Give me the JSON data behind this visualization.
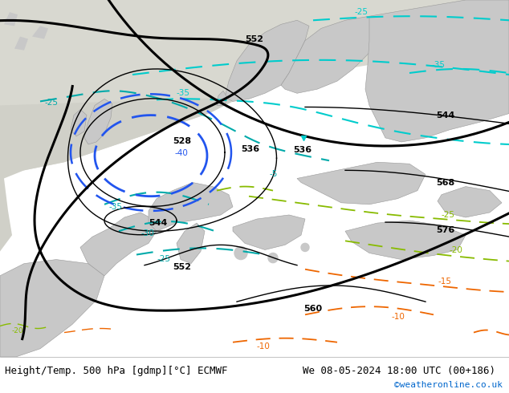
{
  "title_left": "Height/Temp. 500 hPa [gdmp][°C] ECMWF",
  "title_right": "We 08-05-2024 18:00 UTC (00+186)",
  "credit": "©weatheronline.co.uk",
  "credit_color": "#0066cc",
  "bg_green": "#c8f0a0",
  "land_gray": "#c8c8c8",
  "land_green": "#b0d880",
  "cyan_color": "#00cccc",
  "cyan_dark": "#00aaaa",
  "blue_color": "#2255ee",
  "lt_green_color": "#88bb00",
  "orange_color": "#ee6600"
}
